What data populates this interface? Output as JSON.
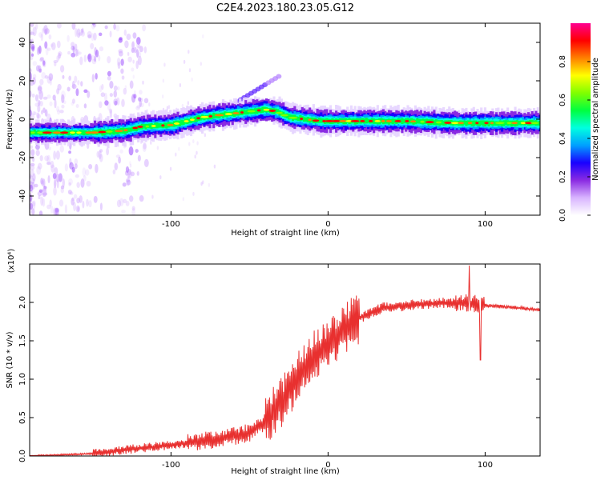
{
  "figure": {
    "title": "C2E4.2023.180.23.05.G12"
  },
  "chart_data": [
    {
      "type": "heatmap",
      "title": "C2E4.2023.180.23.05.G12",
      "xlabel": "Height of straight line (km)",
      "ylabel": "Frequency (Hz)",
      "xlim": [
        -190,
        135
      ],
      "ylim": [
        -50,
        50
      ],
      "xticks": [
        -100,
        0,
        100
      ],
      "yticks": [
        -40,
        -20,
        0,
        20,
        40
      ],
      "colorbar": {
        "label": "Normalized spectral amplitude",
        "range": [
          0,
          1
        ],
        "ticks": [
          "0.0",
          "0.2",
          "0.4",
          "0.6",
          "0.8"
        ],
        "colormap": [
          "#ffffff",
          "#d8b4ff",
          "#8a2be2",
          "#1a00ff",
          "#00a0ff",
          "#00ffe0",
          "#00ff40",
          "#80ff00",
          "#ffff00",
          "#ff8000",
          "#ff0000",
          "#ff0090"
        ]
      },
      "ridge": [
        {
          "x": -190,
          "y": -7
        },
        {
          "x": -150,
          "y": -7
        },
        {
          "x": -130,
          "y": -6
        },
        {
          "x": -120,
          "y": -4
        },
        {
          "x": -100,
          "y": -3
        },
        {
          "x": -90,
          "y": -1
        },
        {
          "x": -80,
          "y": 1
        },
        {
          "x": -70,
          "y": 2
        },
        {
          "x": -60,
          "y": 3
        },
        {
          "x": -50,
          "y": 4
        },
        {
          "x": -40,
          "y": 5
        },
        {
          "x": -33,
          "y": 4
        },
        {
          "x": -25,
          "y": 1
        },
        {
          "x": -15,
          "y": 0
        },
        {
          "x": -5,
          "y": -1
        },
        {
          "x": 5,
          "y": -1
        },
        {
          "x": 20,
          "y": -1
        },
        {
          "x": 50,
          "y": -1
        },
        {
          "x": 80,
          "y": -2
        },
        {
          "x": 110,
          "y": -2
        },
        {
          "x": 135,
          "y": -2
        }
      ],
      "grid": false
    },
    {
      "type": "line",
      "xlabel": "Height of straight line (km)",
      "ylabel": "SNR (10 * v/v)",
      "y_multiplier_label": "(x10⁴)",
      "xlim": [
        -190,
        135
      ],
      "ylim": [
        0,
        2.5
      ],
      "xticks": [
        -100,
        0,
        100
      ],
      "yticks": [
        "0.0",
        "0.5",
        "1.0",
        "1.5",
        "2.0"
      ],
      "series": [
        {
          "color": "#e8302f",
          "trend": [
            {
              "x": -190,
              "y": 0.0
            },
            {
              "x": -150,
              "y": 0.03
            },
            {
              "x": -130,
              "y": 0.08
            },
            {
              "x": -110,
              "y": 0.12
            },
            {
              "x": -90,
              "y": 0.17
            },
            {
              "x": -70,
              "y": 0.22
            },
            {
              "x": -50,
              "y": 0.3
            },
            {
              "x": -40,
              "y": 0.45
            },
            {
              "x": -30,
              "y": 0.7
            },
            {
              "x": -20,
              "y": 1.0
            },
            {
              "x": -10,
              "y": 1.3
            },
            {
              "x": 0,
              "y": 1.45
            },
            {
              "x": 10,
              "y": 1.65
            },
            {
              "x": 20,
              "y": 1.8
            },
            {
              "x": 35,
              "y": 1.93
            },
            {
              "x": 60,
              "y": 1.98
            },
            {
              "x": 85,
              "y": 2.0
            },
            {
              "x": 100,
              "y": 1.96
            },
            {
              "x": 120,
              "y": 1.93
            },
            {
              "x": 135,
              "y": 1.9
            }
          ],
          "peak": {
            "x": 90,
            "y": 2.48
          },
          "trough": {
            "x": 97,
            "y": 1.25
          }
        }
      ],
      "grid": false
    }
  ]
}
